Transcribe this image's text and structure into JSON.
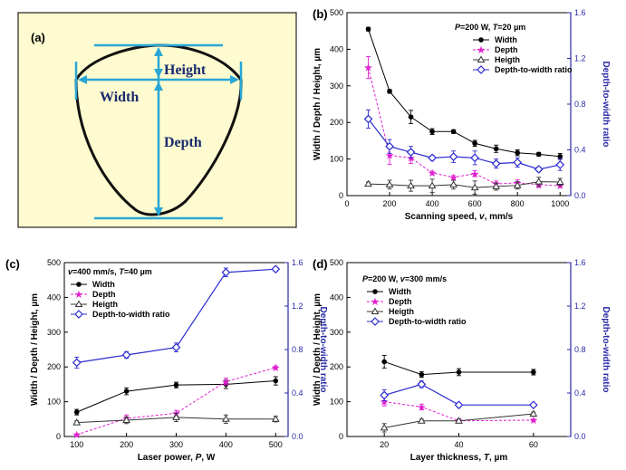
{
  "colors": {
    "width": "#000000",
    "depth": "#e020d0",
    "height": "#333333",
    "ratio": "#2a2ad0",
    "right_axis": "#2a2aa8",
    "diagram_bg": "#fdfbcf",
    "diagram_line": "#29a6d6"
  },
  "panel_a": {
    "label": "(a)",
    "height_label": "Height",
    "width_label": "Width",
    "depth_label": "Depth"
  },
  "legend_labels": {
    "width": "Width",
    "depth": "Depth",
    "height": "Heigth",
    "ratio": "Depth-to-width ratio"
  },
  "chart_data": [
    {
      "panel": "(b)",
      "type": "line",
      "condition_parts": [
        {
          "t": "P",
          "i": true
        },
        {
          "t": "=200 W,  ",
          "i": false
        },
        {
          "t": "T",
          "i": true
        },
        {
          "t": "=20 µm",
          "i": false
        }
      ],
      "xlabel_parts": [
        {
          "t": "Scanning speed, ",
          "i": false
        },
        {
          "t": "v",
          "i": true
        },
        {
          "t": ", mm/s",
          "i": false
        }
      ],
      "ylabel": "Width / Depth / Height, µm",
      "y2label": "Depth-to-width ratio",
      "xlim": [
        0,
        1050
      ],
      "xticks": [
        0,
        200,
        400,
        600,
        800,
        1000
      ],
      "ylim": [
        0,
        500
      ],
      "yticks": [
        0,
        100,
        200,
        300,
        400,
        500
      ],
      "y2lim": [
        0,
        1.6
      ],
      "y2ticks": [
        "0.0",
        "0.4",
        "0.8",
        "1.2",
        "1.6"
      ],
      "x": [
        100,
        200,
        300,
        400,
        500,
        600,
        700,
        800,
        900,
        1000
      ],
      "series": [
        {
          "key": "width",
          "axis": "left",
          "values": [
            455,
            285,
            215,
            175,
            175,
            143,
            128,
            117,
            113,
            107
          ],
          "err": [
            5,
            5,
            18,
            8,
            5,
            8,
            10,
            8,
            5,
            8
          ]
        },
        {
          "key": "depth",
          "axis": "left",
          "values": [
            350,
            110,
            103,
            62,
            50,
            60,
            32,
            35,
            30,
            27
          ],
          "err": [
            30,
            25,
            15,
            5,
            5,
            8,
            8,
            8,
            8,
            5
          ]
        },
        {
          "key": "height",
          "axis": "left",
          "values": [
            32,
            30,
            27,
            27,
            30,
            22,
            25,
            28,
            38,
            37
          ],
          "err": [
            5,
            12,
            15,
            18,
            12,
            18,
            10,
            10,
            12,
            10
          ]
        },
        {
          "key": "ratio",
          "axis": "right",
          "values": [
            0.67,
            0.43,
            0.38,
            0.33,
            0.34,
            0.33,
            0.28,
            0.29,
            0.23,
            0.27
          ],
          "err": [
            0.08,
            0.06,
            0.05,
            0.02,
            0.05,
            0.06,
            0.04,
            0.04,
            0.02,
            0.05
          ]
        }
      ]
    },
    {
      "panel": "(c)",
      "type": "line",
      "condition_parts": [
        {
          "t": "v",
          "i": true
        },
        {
          "t": "=400 mm/s, ",
          "i": false
        },
        {
          "t": "T",
          "i": true
        },
        {
          "t": "=40 µm",
          "i": false
        }
      ],
      "xlabel_parts": [
        {
          "t": "Laser power, ",
          "i": false
        },
        {
          "t": "P",
          "i": true
        },
        {
          "t": ", W",
          "i": false
        }
      ],
      "ylabel": "Width / Depth / Height, µm",
      "y2label": "Depth-to-width ratio",
      "xlim": [
        75,
        525
      ],
      "xticks": [
        100,
        200,
        300,
        400,
        500
      ],
      "ylim": [
        0,
        500
      ],
      "yticks": [
        0,
        100,
        200,
        300,
        400,
        500
      ],
      "y2lim": [
        0,
        1.6
      ],
      "y2ticks": [
        "0.0",
        "0.4",
        "0.8",
        "1.2",
        "1.6"
      ],
      "x": [
        100,
        200,
        300,
        400,
        500
      ],
      "series": [
        {
          "key": "width",
          "axis": "left",
          "values": [
            70,
            130,
            148,
            150,
            160
          ],
          "err": [
            8,
            10,
            8,
            12,
            12
          ]
        },
        {
          "key": "depth",
          "axis": "left",
          "values": [
            5,
            52,
            67,
            158,
            198
          ],
          "err": [
            3,
            10,
            8,
            10,
            5
          ]
        },
        {
          "key": "height",
          "axis": "left",
          "values": [
            40,
            47,
            55,
            50,
            50
          ],
          "err": [
            5,
            10,
            12,
            12,
            8
          ]
        },
        {
          "key": "ratio",
          "axis": "right",
          "values": [
            0.68,
            0.75,
            0.82,
            1.51,
            1.54
          ],
          "err": [
            0.05,
            0.03,
            0.04,
            0.04,
            0.02
          ]
        }
      ]
    },
    {
      "panel": "(d)",
      "type": "line",
      "condition_parts": [
        {
          "t": "P",
          "i": true
        },
        {
          "t": "=200 W,  ",
          "i": false
        },
        {
          "t": "v",
          "i": true
        },
        {
          "t": "=300 mm/s",
          "i": false
        }
      ],
      "xlabel_parts": [
        {
          "t": "Layer thickness, ",
          "i": false
        },
        {
          "t": "T",
          "i": true
        },
        {
          "t": ", µm",
          "i": false
        }
      ],
      "ylabel": "Width / Depth / Height, µm",
      "y2label": "Depth-to-width ratio",
      "xlim": [
        10,
        70
      ],
      "xticks": [
        20,
        40,
        60
      ],
      "ylim": [
        0,
        500
      ],
      "yticks": [
        0,
        100,
        200,
        300,
        400,
        500
      ],
      "y2lim": [
        0,
        1.6
      ],
      "y2ticks": [
        "0.0",
        "0.4",
        "0.8",
        "1.2",
        "1.6"
      ],
      "x": [
        20,
        30,
        40,
        60
      ],
      "series": [
        {
          "key": "width",
          "axis": "left",
          "values": [
            215,
            178,
            185,
            185
          ],
          "err": [
            18,
            8,
            10,
            8
          ]
        },
        {
          "key": "depth",
          "axis": "left",
          "values": [
            100,
            85,
            45,
            47
          ],
          "err": [
            12,
            8,
            5,
            3
          ]
        },
        {
          "key": "height",
          "axis": "left",
          "values": [
            25,
            45,
            45,
            65
          ],
          "err": [
            12,
            5,
            5,
            5
          ]
        },
        {
          "key": "ratio",
          "axis": "right",
          "values": [
            0.38,
            0.48,
            0.29,
            0.29
          ],
          "err": [
            0.05,
            0.03,
            0.02,
            0.01
          ]
        }
      ]
    }
  ]
}
